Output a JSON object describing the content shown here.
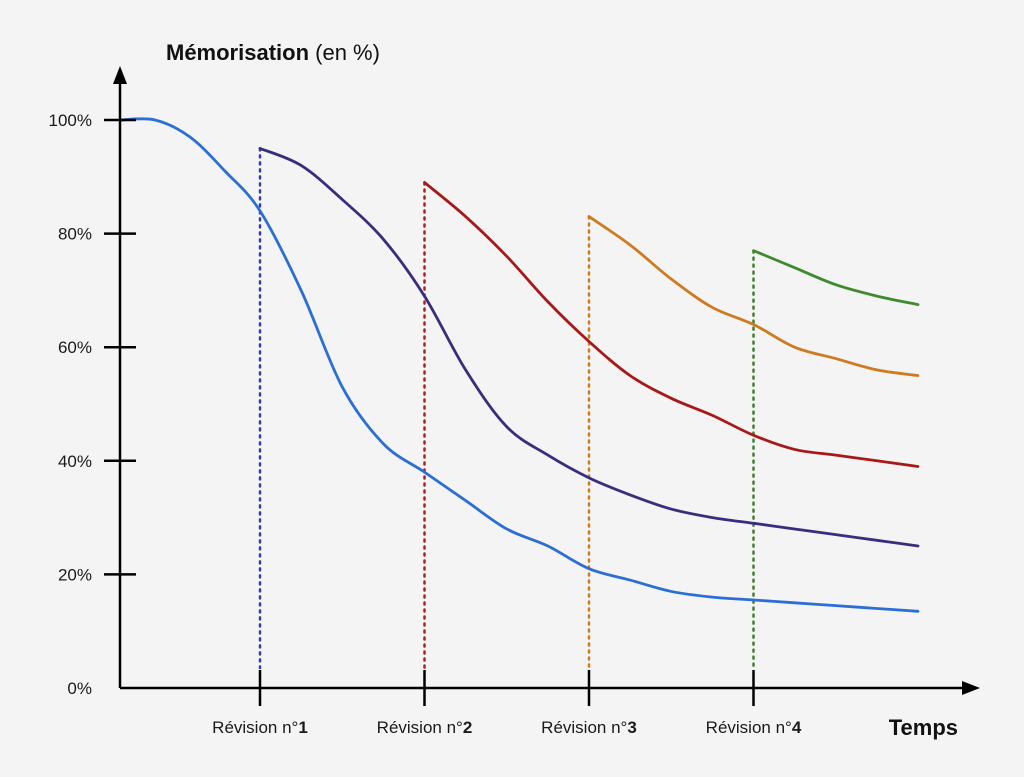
{
  "chart_data": {
    "type": "line",
    "ylabel_bold": "Mémorisation",
    "ylabel_unit": " (en %)",
    "xlabel": "Temps",
    "ylim": [
      0,
      100
    ],
    "y_ticks": [
      "100%",
      "80%",
      "60%",
      "40%",
      "20%",
      "0%"
    ],
    "y_tick_values": [
      100,
      80,
      60,
      40,
      20,
      0
    ],
    "x_range": [
      0,
      5
    ],
    "revisions": [
      {
        "prefix": "Révision n°",
        "number": "1",
        "x": 1.0,
        "color": "#3a3ab0"
      },
      {
        "prefix": "Révision n°",
        "number": "2",
        "x": 2.0,
        "color": "#b02020"
      },
      {
        "prefix": "Révision n°",
        "number": "3",
        "x": 3.0,
        "color": "#d07a20"
      },
      {
        "prefix": "Révision n°",
        "number": "4",
        "x": 4.0,
        "color": "#3f7f2f"
      }
    ],
    "series": [
      {
        "color": "#2b6fd6",
        "points": [
          [
            0,
            100
          ],
          [
            0.25,
            100
          ],
          [
            0.5,
            97
          ],
          [
            0.75,
            91
          ],
          [
            1.0,
            84
          ],
          [
            1.25,
            70
          ],
          [
            1.5,
            53
          ],
          [
            1.75,
            43
          ],
          [
            2.0,
            38
          ],
          [
            2.25,
            33
          ],
          [
            2.5,
            28
          ],
          [
            2.75,
            25
          ],
          [
            3.0,
            21
          ],
          [
            3.25,
            19
          ],
          [
            3.5,
            17
          ],
          [
            3.75,
            16
          ],
          [
            4.0,
            15.5
          ],
          [
            4.25,
            15
          ],
          [
            4.5,
            14.5
          ],
          [
            4.75,
            14
          ],
          [
            5.0,
            13.5
          ]
        ]
      },
      {
        "color": "#3a2d7d",
        "points": [
          [
            1.0,
            95
          ],
          [
            1.25,
            92
          ],
          [
            1.5,
            86
          ],
          [
            1.75,
            79
          ],
          [
            2.0,
            69
          ],
          [
            2.25,
            56
          ],
          [
            2.5,
            46
          ],
          [
            2.75,
            41
          ],
          [
            3.0,
            37
          ],
          [
            3.25,
            34
          ],
          [
            3.5,
            31.5
          ],
          [
            3.75,
            30
          ],
          [
            4.0,
            29
          ],
          [
            4.25,
            28
          ],
          [
            4.5,
            27
          ],
          [
            4.75,
            26
          ],
          [
            5.0,
            25
          ]
        ]
      },
      {
        "color": "#a81818",
        "points": [
          [
            2.0,
            89
          ],
          [
            2.25,
            83
          ],
          [
            2.5,
            76
          ],
          [
            2.75,
            68
          ],
          [
            3.0,
            61
          ],
          [
            3.25,
            55
          ],
          [
            3.5,
            51
          ],
          [
            3.75,
            48
          ],
          [
            4.0,
            44.5
          ],
          [
            4.25,
            42
          ],
          [
            4.5,
            41
          ],
          [
            4.75,
            40
          ],
          [
            5.0,
            39
          ]
        ]
      },
      {
        "color": "#d07a20",
        "points": [
          [
            3.0,
            83
          ],
          [
            3.25,
            78
          ],
          [
            3.5,
            72
          ],
          [
            3.75,
            67
          ],
          [
            4.0,
            64
          ],
          [
            4.25,
            60
          ],
          [
            4.5,
            58
          ],
          [
            4.75,
            56
          ],
          [
            5.0,
            55
          ]
        ]
      },
      {
        "color": "#3f8a2f",
        "points": [
          [
            4.0,
            77
          ],
          [
            4.25,
            74
          ],
          [
            4.5,
            71
          ],
          [
            4.75,
            69
          ],
          [
            5.0,
            67.5
          ]
        ]
      }
    ]
  }
}
